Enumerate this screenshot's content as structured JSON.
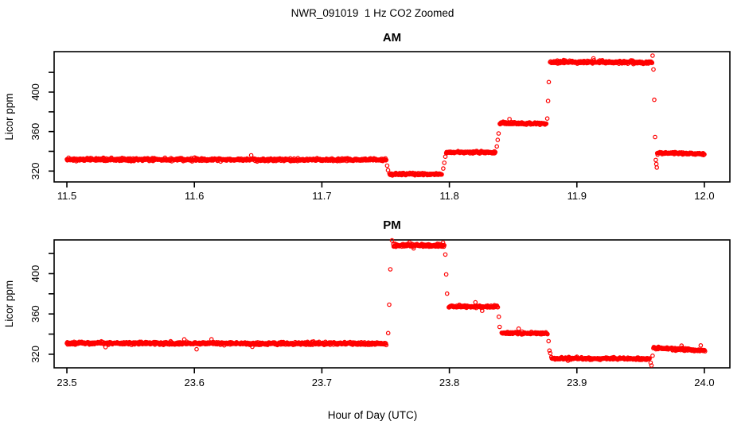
{
  "figure": {
    "title": "NWR_091019  1 Hz CO2 Zoomed",
    "x_axis_title": "Hour of Day (UTC)",
    "background_color": "#FFFFFF",
    "axis_color": "#000000",
    "point_color": "#FF0000"
  },
  "chart_data": {
    "type": "scatter",
    "title": "NWR_091019  1 Hz CO2 Zoomed",
    "xlabel": "Hour of Day (UTC)",
    "ylabel": "Licor ppm",
    "marker": "open-circle",
    "color": "#FF0000",
    "sample_rate_hz": 1,
    "grid": false,
    "legend": false,
    "panels": [
      {
        "name": "AM",
        "xlim": [
          11.49,
          12.02
        ],
        "ylim": [
          309,
          441
        ],
        "xtick_values": [
          11.5,
          11.6,
          11.7,
          11.8,
          11.9,
          12.0
        ],
        "xtick_labels": [
          "11.5",
          "11.6",
          "11.7",
          "11.8",
          "11.9",
          "12.0"
        ],
        "ytick_values": [
          320,
          340,
          360,
          380,
          400,
          420
        ],
        "ytick_labeled": [
          [
            320,
            "320"
          ],
          [
            360,
            "360"
          ],
          [
            400,
            "400"
          ]
        ],
        "segments": [
          {
            "x0": 11.5,
            "x1": 11.7505,
            "v0": 331.8,
            "v1": 331.4,
            "spread": 1.2
          },
          {
            "x0": 11.753,
            "x1": 11.794,
            "v0": 317.0,
            "v1": 316.8,
            "spread": 1.0
          },
          {
            "x0": 11.7975,
            "x1": 11.836,
            "v0": 339.2,
            "v1": 338.8,
            "spread": 1.0
          },
          {
            "x0": 11.8395,
            "x1": 11.876,
            "v0": 368.4,
            "v1": 368.1,
            "spread": 1.0
          },
          {
            "x0": 11.879,
            "x1": 11.959,
            "v0": 430.6,
            "v1": 430.2,
            "spread": 1.2
          },
          {
            "x0": 11.963,
            "x1": 12.0,
            "v0": 338.4,
            "v1": 337.3,
            "spread": 1.0
          }
        ],
        "transition_points": [
          [
            11.7512,
            325.5
          ],
          [
            11.7519,
            320.9
          ],
          [
            11.7952,
            322.6
          ],
          [
            11.796,
            328.4
          ],
          [
            11.7968,
            334.6
          ],
          [
            11.8372,
            345.0
          ],
          [
            11.8379,
            351.6
          ],
          [
            11.8386,
            358.1
          ],
          [
            11.8768,
            373.2
          ],
          [
            11.8774,
            391.0
          ],
          [
            11.878,
            410.2
          ],
          [
            11.9594,
            437.0
          ],
          [
            11.9601,
            423.0
          ],
          [
            11.9607,
            392.2
          ],
          [
            11.9613,
            354.5
          ],
          [
            11.9619,
            331.2
          ],
          [
            11.9623,
            327.1
          ],
          [
            11.9627,
            323.6
          ]
        ]
      },
      {
        "name": "PM",
        "xlim": [
          23.49,
          24.02
        ],
        "ylim": [
          306.5,
          433.5
        ],
        "xtick_values": [
          23.5,
          23.6,
          23.7,
          23.8,
          23.9,
          24.0
        ],
        "xtick_labels": [
          "23.5",
          "23.6",
          "23.7",
          "23.8",
          "23.9",
          "24.0"
        ],
        "ytick_values": [
          320,
          340,
          360,
          380,
          400,
          420
        ],
        "ytick_labeled": [
          [
            320,
            "320"
          ],
          [
            360,
            "360"
          ],
          [
            400,
            "400"
          ]
        ],
        "segments": [
          {
            "x0": 23.5,
            "x1": 23.7505,
            "v0": 331.0,
            "v1": 330.6,
            "spread": 1.2
          },
          {
            "x0": 23.756,
            "x1": 23.796,
            "v0": 428.3,
            "v1": 428.0,
            "spread": 1.2
          },
          {
            "x0": 23.7995,
            "x1": 23.838,
            "v0": 367.6,
            "v1": 367.3,
            "spread": 1.0
          },
          {
            "x0": 23.841,
            "x1": 23.877,
            "v0": 341.2,
            "v1": 340.8,
            "spread": 1.0
          },
          {
            "x0": 23.88,
            "x1": 23.957,
            "v0": 316.0,
            "v1": 315.4,
            "spread": 1.0
          },
          {
            "x0": 23.96,
            "x1": 24.0005,
            "v0": 326.4,
            "v1": 323.6,
            "spread": 1.0
          }
        ],
        "transition_points": [
          [
            23.752,
            341.0
          ],
          [
            23.7528,
            369.2
          ],
          [
            23.7537,
            404.3
          ],
          [
            23.755,
            433.0
          ],
          [
            23.7968,
            419.0
          ],
          [
            23.7975,
            399.3
          ],
          [
            23.7982,
            380.2
          ],
          [
            23.8388,
            357.2
          ],
          [
            23.8394,
            347.1
          ],
          [
            23.8778,
            333.0
          ],
          [
            23.8785,
            323.6
          ],
          [
            23.8791,
            321.0
          ],
          [
            23.9578,
            311.6
          ],
          [
            23.9585,
            308.9
          ],
          [
            23.9594,
            318.5
          ]
        ]
      }
    ]
  }
}
